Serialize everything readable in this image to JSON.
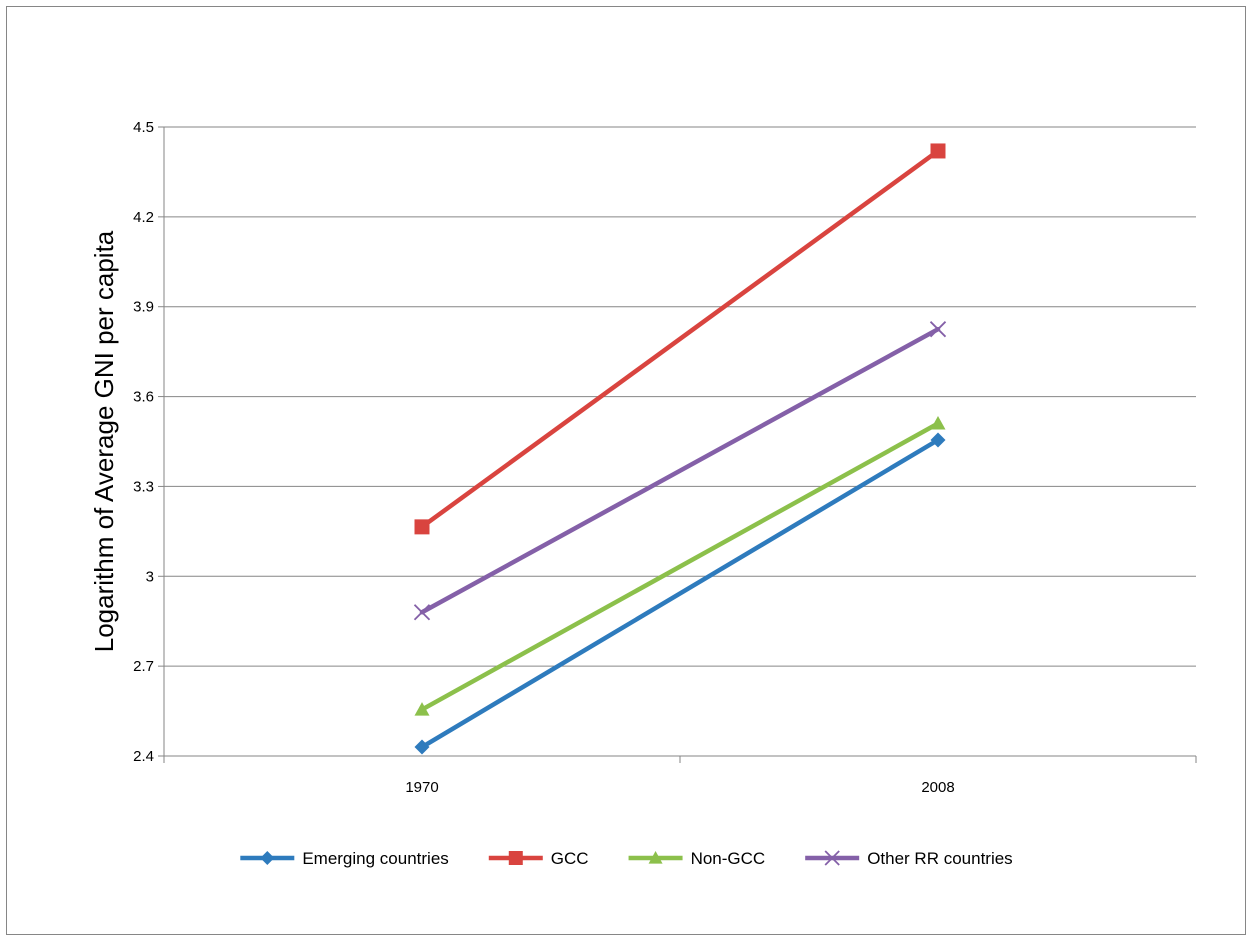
{
  "chart_data": {
    "type": "line",
    "title": "",
    "xlabel": "",
    "ylabel": "Logarithm of  Average GNI per capita",
    "categories": [
      "1970",
      "2008"
    ],
    "ylim": [
      2.4,
      4.5
    ],
    "yticks": [
      "2.4",
      "2.7",
      "3",
      "3.3",
      "3.6",
      "3.9",
      "4.2",
      "4.5"
    ],
    "grid": "horizontal",
    "legend_position": "bottom",
    "series": [
      {
        "name": "Emerging countries",
        "values": [
          2.43,
          3.455
        ],
        "color": "#2e7bbd",
        "marker": "diamond"
      },
      {
        "name": "GCC",
        "values": [
          3.165,
          4.42
        ],
        "color": "#d9443f",
        "marker": "square"
      },
      {
        "name": "Non-GCC",
        "values": [
          2.555,
          3.51
        ],
        "color": "#8cc04b",
        "marker": "triangle"
      },
      {
        "name": "Other RR countries",
        "values": [
          2.88,
          3.825
        ],
        "color": "#8460a8",
        "marker": "x"
      }
    ]
  }
}
